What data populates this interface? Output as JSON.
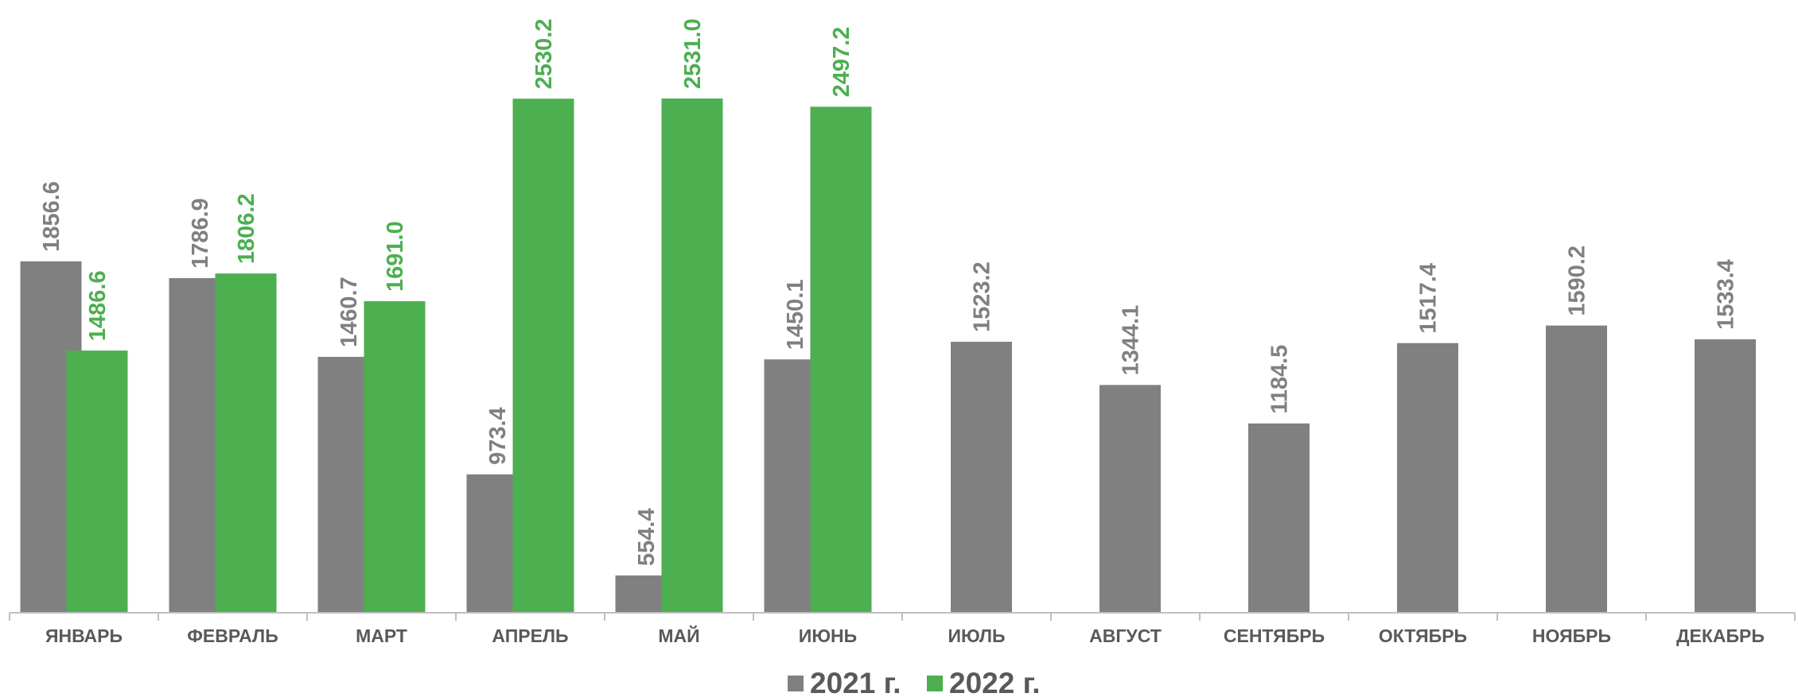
{
  "chart_data": {
    "type": "bar",
    "categories": [
      "ЯНВАРЬ",
      "ФЕВРАЛЬ",
      "МАРТ",
      "АПРЕЛЬ",
      "МАЙ",
      "ИЮНЬ",
      "ИЮЛЬ",
      "АВГУСТ",
      "СЕНТЯБРЬ",
      "ОКТЯБРЬ",
      "НОЯБРЬ",
      "ДЕКАБРЬ"
    ],
    "series": [
      {
        "name": "2021 г.",
        "color": "#808080",
        "values": [
          1856.6,
          1786.9,
          1460.7,
          973.4,
          554.4,
          1450.1,
          1523.2,
          1344.1,
          1184.5,
          1517.4,
          1590.2,
          1533.4
        ],
        "labels": [
          "1856.6",
          "1786.9",
          "1460.7",
          "973.4",
          "554.4",
          "1450.1",
          "1523.2",
          "1344.1",
          "1184.5",
          "1517.4",
          "1590.2",
          "1533.4"
        ]
      },
      {
        "name": "2022 г.",
        "color": "#4CAF50",
        "values": [
          1486.6,
          1806.2,
          1691.0,
          2530.2,
          2531.0,
          2497.2,
          null,
          null,
          null,
          null,
          null,
          null
        ],
        "labels": [
          "1486.6",
          "1806.2",
          "1691.0",
          "2530.2",
          "2531.0",
          "2497.2",
          null,
          null,
          null,
          null,
          null,
          null
        ]
      }
    ],
    "ylim": [
      400,
      2531.0
    ],
    "grid": false,
    "legend_position": "bottom-center",
    "title": "",
    "xlabel": "",
    "ylabel": ""
  }
}
